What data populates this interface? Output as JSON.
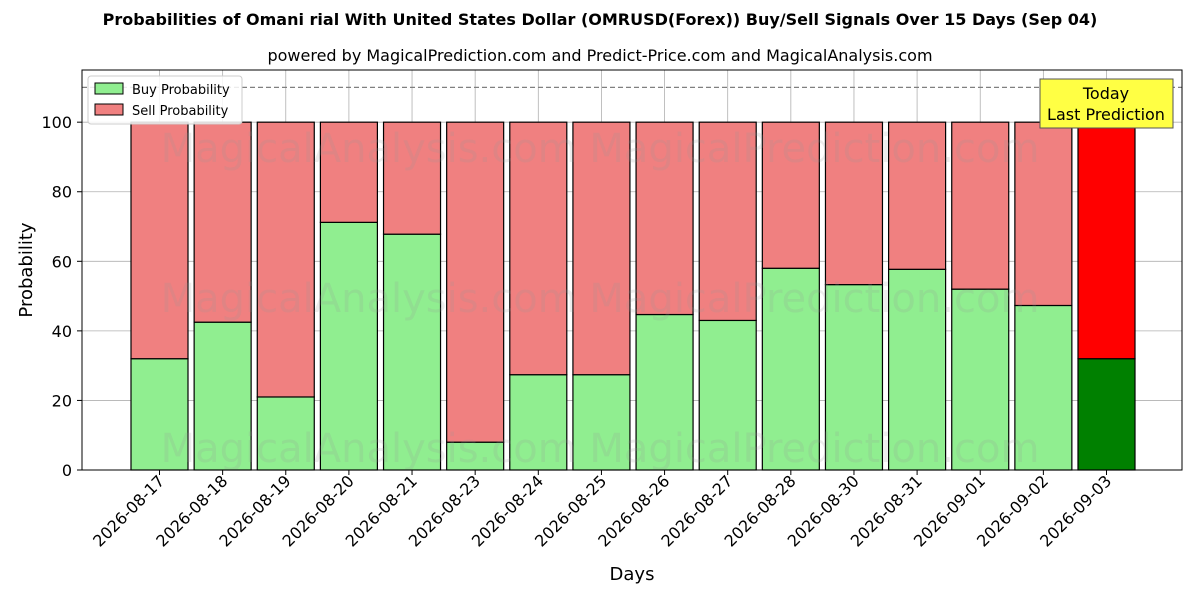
{
  "chart_data": {
    "type": "bar",
    "stacked": true,
    "title": "Probabilities of Omani rial With United States Dollar (OMRUSD(Forex)) Buy/Sell Signals Over 15 Days (Sep 04)",
    "subtitle": "powered by MagicalPrediction.com and Predict-Price.com and MagicalAnalysis.com",
    "xlabel": "Days",
    "ylabel": "Probability",
    "ylim": [
      0,
      115
    ],
    "yticks": [
      0,
      20,
      40,
      60,
      80,
      100
    ],
    "grid": true,
    "legend_position": "top-left",
    "reference_line": 110,
    "categories": [
      "2026-08-17",
      "2026-08-18",
      "2026-08-19",
      "2026-08-20",
      "2026-08-21",
      "2026-08-23",
      "2026-08-24",
      "2026-08-25",
      "2026-08-26",
      "2026-08-27",
      "2026-08-28",
      "2026-08-30",
      "2026-08-31",
      "2026-09-01",
      "2026-09-02",
      "2026-09-03"
    ],
    "series": [
      {
        "name": "Buy Probability",
        "color": "#90ee90",
        "values": [
          32,
          42.5,
          21,
          71.2,
          67.8,
          8,
          27.4,
          27.4,
          44.7,
          43,
          58,
          53.3,
          57.7,
          52,
          47.3,
          32
        ]
      },
      {
        "name": "Sell Probability",
        "color": "#f08080",
        "values": [
          68,
          57.5,
          79,
          28.8,
          32.2,
          92,
          72.6,
          72.6,
          55.3,
          57,
          42,
          46.7,
          42.3,
          48,
          52.7,
          68
        ]
      }
    ],
    "highlight": {
      "index": 15,
      "buy_color": "#008000",
      "sell_color": "#ff0000"
    },
    "annotation": {
      "text_line1": "Today",
      "text_line2": "Last Prediction",
      "bg_color": "#ffff44"
    },
    "watermark": "MagicalAnalysis.com     MagicalPrediction.com"
  }
}
